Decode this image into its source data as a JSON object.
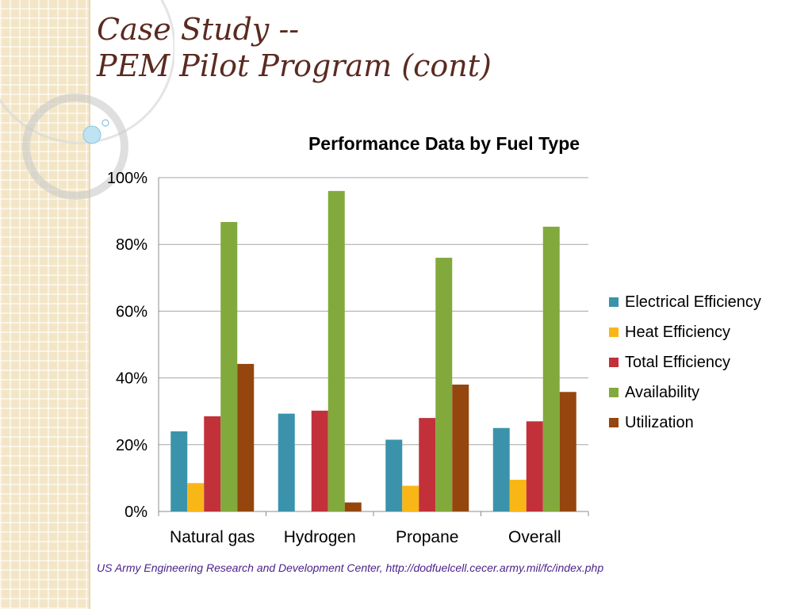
{
  "slide": {
    "title_line1": "Case Study --",
    "title_line2": "PEM Pilot Program (cont)",
    "source": "US Army Engineering Research and Development Center, http://dodfuelcell.cecer.army.mil/fc/index.php",
    "colors": {
      "title": "#5a2a20",
      "source": "#4a1f8a",
      "strip": "#f3e6c7"
    }
  },
  "chart_data": {
    "type": "bar",
    "title": "Performance Data by Fuel Type",
    "xlabel": "",
    "ylabel": "",
    "categories": [
      "Natural gas",
      "Hydrogen",
      "Propane",
      "Overall"
    ],
    "ylim": [
      0,
      100
    ],
    "yticks": [
      0,
      20,
      40,
      60,
      80,
      100
    ],
    "ytick_labels": [
      "0%",
      "20%",
      "40%",
      "60%",
      "80%",
      "100%"
    ],
    "grid": true,
    "legend_position": "right",
    "series": [
      {
        "name": "Electrical Efficiency",
        "color": "#3a93ab",
        "values": [
          24,
          29.3,
          21.5,
          25
        ]
      },
      {
        "name": "Heat Efficiency",
        "color": "#f9b717",
        "values": [
          8.5,
          0,
          7.7,
          9.5
        ]
      },
      {
        "name": "Total Efficiency",
        "color": "#c2313a",
        "values": [
          28.5,
          30.2,
          28,
          27
        ]
      },
      {
        "name": "Availability",
        "color": "#82a93c",
        "values": [
          86.7,
          96,
          76,
          85.3
        ]
      },
      {
        "name": "Utilization",
        "color": "#95460e",
        "values": [
          44.2,
          2.7,
          38,
          35.8
        ]
      }
    ]
  }
}
